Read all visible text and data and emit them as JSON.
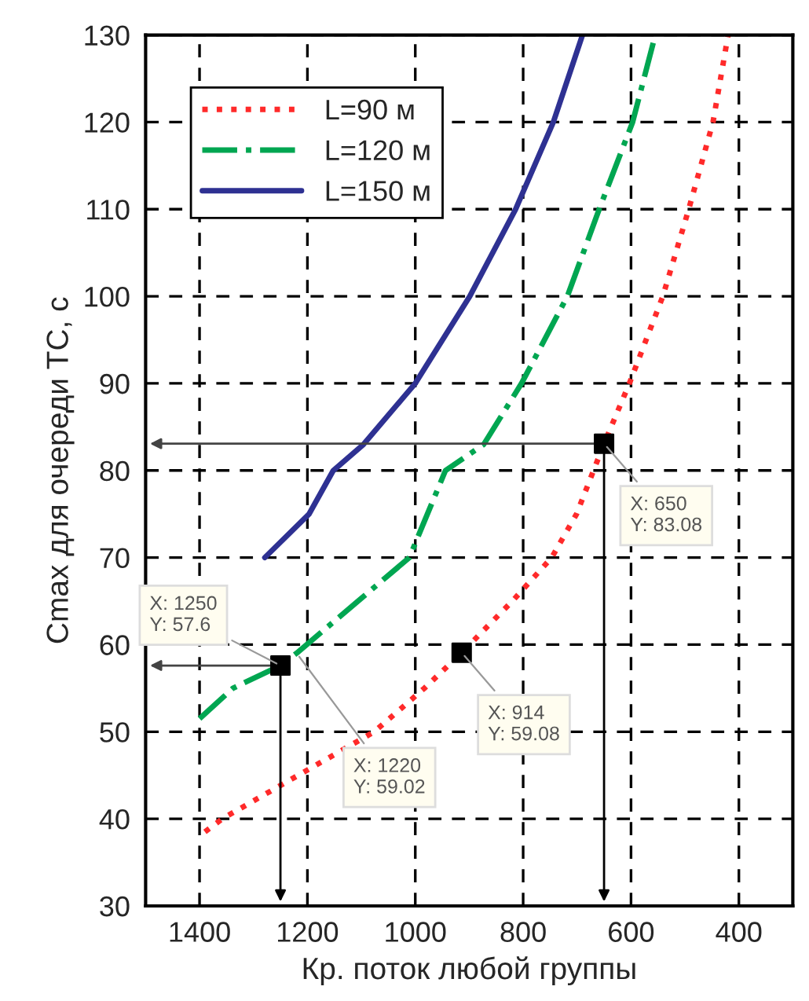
{
  "chart_data": {
    "type": "line",
    "xlabel": "Кр. поток любой группы",
    "ylabel": "Cmax для очереди ТС, с",
    "xlim": [
      1500,
      300
    ],
    "xticks": [
      1400,
      1200,
      1000,
      800,
      600,
      400
    ],
    "ylim": [
      30,
      130
    ],
    "yticks": [
      30,
      40,
      50,
      60,
      70,
      80,
      90,
      100,
      110,
      120,
      130
    ],
    "grid": true,
    "legend": "top left",
    "series": [
      {
        "name": "L=90 м",
        "color": "#ff2a2a",
        "line_style": "dotted",
        "x": [
          1390,
          1358,
          1217,
          1076,
          983,
          914,
          820,
          747,
          701,
          650,
          603,
          541,
          493,
          448,
          420
        ],
        "values": [
          38.5,
          40,
          45,
          50,
          55,
          59.08,
          65,
          70,
          75,
          83.08,
          90,
          100,
          110,
          120,
          130
        ]
      },
      {
        "name": "L=120 м",
        "color": "#00a651",
        "line_style": "dashdot",
        "x": [
          1400,
          1338,
          1250,
          1220,
          1011,
          944,
          873,
          803,
          718,
          659,
          597,
          555
        ],
        "values": [
          51.5,
          55,
          57.6,
          59.02,
          70,
          80,
          83,
          90,
          100,
          110,
          120,
          130
        ]
      },
      {
        "name": "L=150 м",
        "color": "#2e3192",
        "line_style": "solid",
        "x": [
          1279,
          1197,
          1152,
          1096,
          1000,
          899,
          814,
          744,
          690
        ],
        "values": [
          70,
          75,
          80,
          83,
          90,
          100,
          110,
          120,
          130
        ]
      },
      {
        "type": "scatter",
        "marker": "square",
        "color": "#000000",
        "x": [
          1250,
          914,
          650
        ],
        "values": [
          57.6,
          59.08,
          83.08
        ]
      }
    ],
    "annotations": [
      {
        "text": "X: 1250\nY: 57.6",
        "x": 1250,
        "y": 57.6
      },
      {
        "text": "X: 1220\nY: 59.02",
        "x": 1220,
        "y": 59.02
      },
      {
        "text": "X: 914\nY: 59.08",
        "x": 914,
        "y": 59.08
      },
      {
        "text": "X: 650\nY: 83.08",
        "x": 650,
        "y": 83.08
      }
    ]
  }
}
